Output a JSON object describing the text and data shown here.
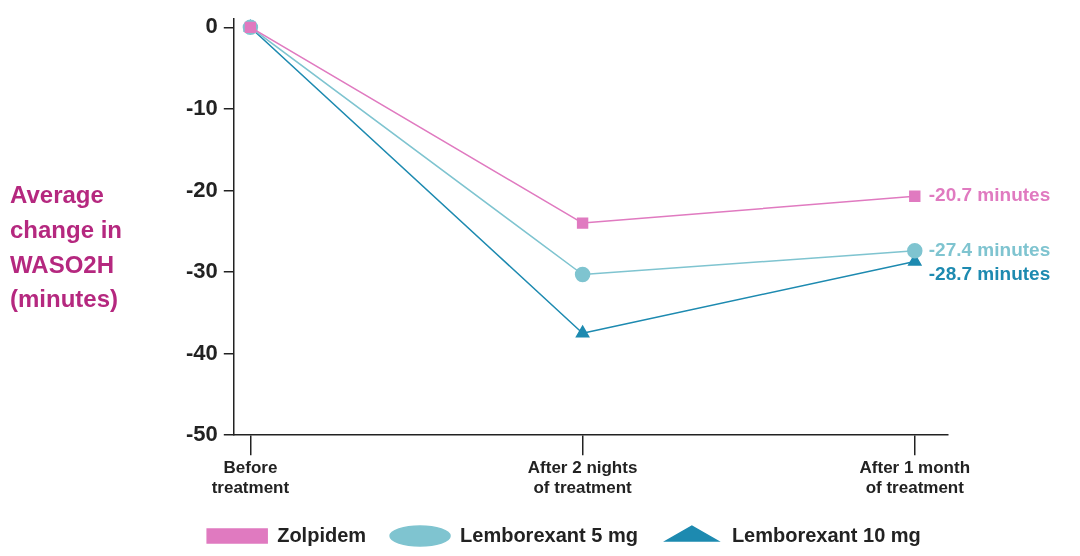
{
  "chart_data": {
    "type": "line",
    "ylabel": "Average change in WASO2H (minutes)",
    "categories": [
      "Before treatment",
      "After 2 nights of treatment",
      "After 1 month of treatment"
    ],
    "ylim": [
      -50,
      1
    ],
    "yticks": [
      0,
      -10,
      -20,
      -30,
      -40,
      -50
    ],
    "grid": false,
    "legend": "bottom",
    "series": [
      {
        "name": "Zolpidem",
        "color": "#e07ac0",
        "marker": "square",
        "values": [
          0,
          -24,
          -20.7
        ],
        "value_labels": [
          null,
          null,
          "-20.7 minutes"
        ]
      },
      {
        "name": "Lemborexant 5 mg",
        "color": "#7fc4d0",
        "marker": "circle",
        "values": [
          0,
          -30.3,
          -27.4
        ],
        "value_labels": [
          null,
          null,
          "-27.4 minutes"
        ]
      },
      {
        "name": "Lemborexant 10 mg",
        "color": "#1d8ab0",
        "marker": "triangle",
        "values": [
          0,
          -37.5,
          -28.7
        ],
        "value_labels": [
          null,
          null,
          "-28.7 minutes"
        ]
      }
    ]
  }
}
